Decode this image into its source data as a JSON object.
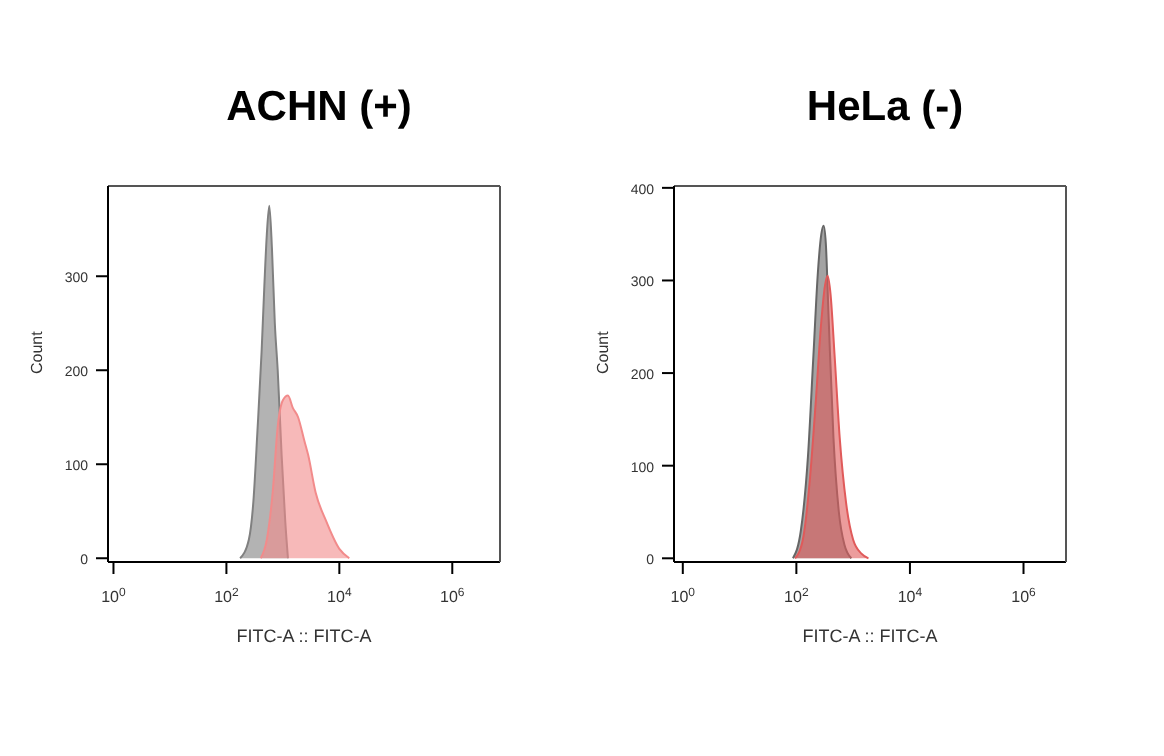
{
  "chart_data": [
    {
      "type": "area",
      "title": "ACHN (+)",
      "xlabel": "FITC-A :: FITC-A",
      "ylabel": "Count",
      "log": "x",
      "xlim": [
        0.8,
        7000000
      ],
      "xticks": [
        {
          "value": 1,
          "label": "10$^{0}$"
        },
        {
          "value": 100,
          "label": "10$^{2}$"
        },
        {
          "value": 10000,
          "label": "10$^{4}$"
        },
        {
          "value": 1000000,
          "label": "10$^{6}$"
        }
      ],
      "ylim": [
        -4,
        396
      ],
      "yticks": [
        0,
        100,
        200,
        300
      ],
      "series": [
        {
          "color": "#808080",
          "x": [
            175,
            250,
            300,
            355,
            420,
            470,
            520,
            575,
            640,
            720,
            810,
            950,
            1100,
            1230
          ],
          "values": [
            0,
            20,
            60,
            136,
            220,
            290,
            345,
            375,
            330,
            250,
            200,
            110,
            40,
            0
          ]
        },
        {
          "color": "#f28b8b",
          "x": [
            405,
            520,
            660,
            810,
            1000,
            1230,
            1500,
            1860,
            2400,
            2800,
            3800,
            5800,
            10000,
            15000
          ],
          "values": [
            0,
            20,
            70,
            140,
            168,
            173,
            160,
            150,
            125,
            110,
            70,
            40,
            10,
            0
          ]
        }
      ]
    },
    {
      "type": "area",
      "title": "HeLa (-)",
      "xlabel": "FITC-A :: FITC-A",
      "ylabel": "Count",
      "log": "x",
      "xlim": [
        0.7,
        5600000
      ],
      "xticks": [
        {
          "value": 1,
          "label": "10$^{0}$"
        },
        {
          "value": 100,
          "label": "10$^{2}$"
        },
        {
          "value": 10000,
          "label": "10$^{4}$"
        },
        {
          "value": 1000000,
          "label": "10$^{6}$"
        }
      ],
      "ylim": [
        -4,
        402
      ],
      "yticks": [
        0,
        100,
        200,
        300,
        400
      ],
      "series": [
        {
          "color": "#666666",
          "x": [
            87,
            120,
            160,
            200,
            240,
            275,
            302,
            330,
            370,
            450,
            560,
            700,
            930
          ],
          "values": [
            0,
            30,
            110,
            220,
            310,
            350,
            359,
            340,
            260,
            130,
            50,
            15,
            0
          ]
        },
        {
          "color": "#e05a5a",
          "x": [
            95,
            130,
            170,
            220,
            270,
            320,
            355,
            400,
            470,
            580,
            750,
            1000,
            1400,
            1860
          ],
          "values": [
            0,
            20,
            80,
            170,
            250,
            295,
            305,
            285,
            220,
            130,
            60,
            20,
            5,
            0
          ]
        }
      ]
    }
  ]
}
